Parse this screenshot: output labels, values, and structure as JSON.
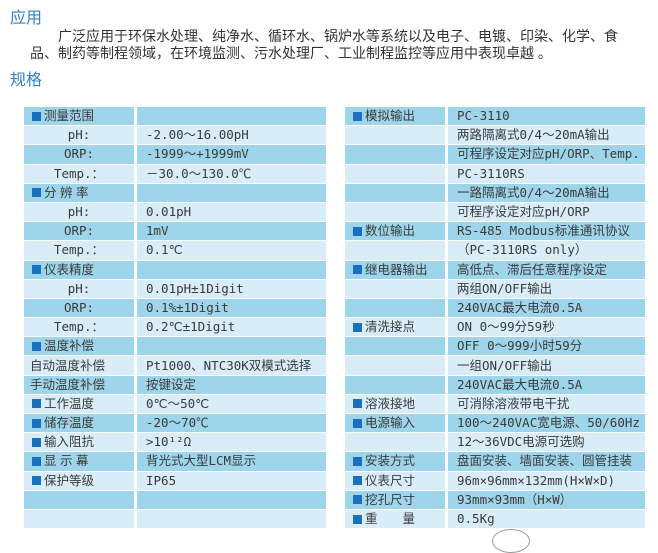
{
  "page": {
    "application_title": "应用",
    "application_text": "广泛应用于环保水处理、纯净水、循环水、锅炉水等系统以及电子、电镀、印染、化学、食品、制药等制程领域，在环境监测、污水处理厂、工业制程监控等应用中表现卓越 。",
    "spec_title": "规格"
  },
  "colors": {
    "title_blue": "#2f81c8",
    "row_dark": "#9fd5ea",
    "row_light": "#d8edf8",
    "bullet_blue": "#1a70be",
    "text": "#3a3a3a"
  },
  "spec_left": {
    "rows": [
      {
        "type": "section",
        "label": "测量范围",
        "value": ""
      },
      {
        "type": "sub",
        "label": "pH:",
        "value": "-2.00～16.00pH"
      },
      {
        "type": "sub",
        "label": "ORP:",
        "value": "-1999～+1999mV"
      },
      {
        "type": "sub",
        "label": "Temp.：",
        "value": "－30.0～130.0℃"
      },
      {
        "type": "section",
        "label": "分 辨 率",
        "value": ""
      },
      {
        "type": "sub",
        "label": "pH:",
        "value": "0.01pH"
      },
      {
        "type": "sub",
        "label": "ORP:",
        "value": "1mV"
      },
      {
        "type": "sub",
        "label": "Temp.：",
        "value": "0.1℃"
      },
      {
        "type": "section",
        "label": "仪表精度",
        "value": ""
      },
      {
        "type": "sub",
        "label": "pH:",
        "value": "0.01pH±1Digit"
      },
      {
        "type": "sub",
        "label": "ORP:",
        "value": "0.1%±1Digit"
      },
      {
        "type": "sub",
        "label": "Temp.：",
        "value": "0.2℃±1Digit"
      },
      {
        "type": "section",
        "label": "温度补偿",
        "value": ""
      },
      {
        "type": "plain",
        "label": "自动温度补偿",
        "value": "Pt1000、NTC30K双模式选择"
      },
      {
        "type": "plain",
        "label": "手动温度补偿",
        "value": "按键设定"
      },
      {
        "type": "section",
        "label": "工作温度",
        "value": "0℃～50℃"
      },
      {
        "type": "section",
        "label": "储存温度",
        "value": "-20～70℃"
      },
      {
        "type": "section",
        "label": "输入阻抗",
        "value": ">10¹²Ω"
      },
      {
        "type": "section",
        "label": "显 示 幕",
        "value": "背光式大型LCM显示"
      },
      {
        "type": "section",
        "label": "保护等级",
        "value": "IP65"
      },
      {
        "type": "empty",
        "label": "",
        "value": ""
      },
      {
        "type": "empty",
        "label": "",
        "value": ""
      }
    ]
  },
  "spec_right": {
    "rows": [
      {
        "type": "section",
        "label": "模拟输出",
        "value": "PC-3110"
      },
      {
        "type": "cont",
        "label": "",
        "value": "两路隔离式0/4～20mA输出"
      },
      {
        "type": "cont",
        "label": "",
        "value": "可程序设定对应pH/ORP、Temp."
      },
      {
        "type": "cont",
        "label": "",
        "value": "PC-3110RS"
      },
      {
        "type": "cont",
        "label": "",
        "value": "一路隔离式0/4～20mA输出"
      },
      {
        "type": "cont",
        "label": "",
        "value": "可程序设定对应pH/ORP"
      },
      {
        "type": "section",
        "label": "数位输出",
        "value": "RS-485  Modbus标准通讯协议"
      },
      {
        "type": "cont",
        "label": "",
        "value": "（PC-3110RS only）"
      },
      {
        "type": "section",
        "label": "继电器输出",
        "value": "高低点、滞后任意程序设定"
      },
      {
        "type": "cont",
        "label": "",
        "value": "两组ON/OFF输出"
      },
      {
        "type": "cont",
        "label": "",
        "value": "240VAC最大电流0.5A"
      },
      {
        "type": "section",
        "label": "清洗接点",
        "value": "ON 0～99分59秒"
      },
      {
        "type": "cont",
        "label": "",
        "value": "OFF 0～999小时59分"
      },
      {
        "type": "cont",
        "label": "",
        "value": "一组ON/OFF输出"
      },
      {
        "type": "cont",
        "label": "",
        "value": "240VAC最大电流0.5A"
      },
      {
        "type": "section",
        "label": "溶液接地",
        "value": "可消除溶液带电干扰"
      },
      {
        "type": "section",
        "label": "电源输入",
        "value": "100～240VAC宽电源、50/60Hz"
      },
      {
        "type": "cont",
        "label": "",
        "value": "12～36VDC电源可选购"
      },
      {
        "type": "section",
        "label": "安装方式",
        "value": "盘面安装、墙面安装、圆管挂装"
      },
      {
        "type": "section",
        "label": "仪表尺寸",
        "value": "96m×96mm×132mm(H×W×D)"
      },
      {
        "type": "section",
        "label": "挖孔尺寸",
        "value": "93mm×93mm（H×W）"
      },
      {
        "type": "section",
        "label": "重　　量",
        "value": "0.5Kg"
      }
    ]
  }
}
